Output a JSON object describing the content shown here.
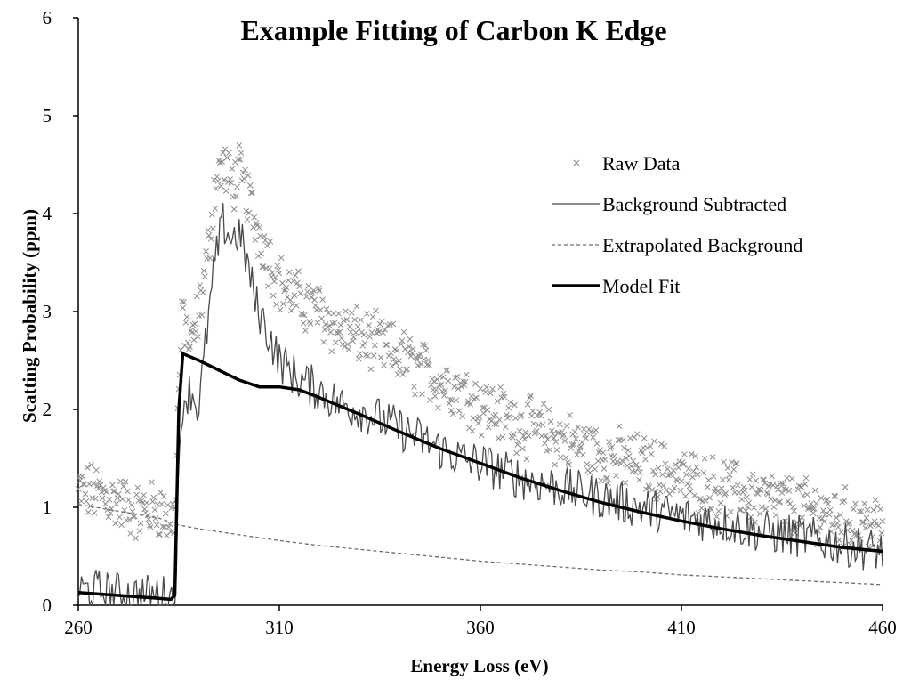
{
  "chart_data": {
    "type": "scatter",
    "title": "Example Fitting of Carbon K Edge",
    "xlabel": "Energy Loss (eV)",
    "ylabel": "Scatting Probability  (ppm)",
    "xlim": [
      260,
      460
    ],
    "ylim": [
      0,
      6
    ],
    "xticks": [
      260,
      310,
      360,
      410,
      460
    ],
    "yticks": [
      0,
      1,
      2,
      3,
      4,
      5,
      6
    ],
    "grid": false,
    "legend_position": "top-right",
    "colors": {
      "raw": "#8c8c8c",
      "background_subtracted": "#4a4a4a",
      "extrapolated": "#6e6e6e",
      "model_fit": "#000000"
    },
    "series": [
      {
        "name": "Raw Data",
        "style": "markers-x",
        "x": [
          260,
          265,
          270,
          275,
          280,
          283,
          284,
          285,
          286,
          288,
          290,
          292,
          294,
          296,
          298,
          300,
          302,
          304,
          306,
          308,
          310,
          315,
          320,
          325,
          330,
          335,
          340,
          345,
          350,
          355,
          360,
          370,
          380,
          390,
          400,
          410,
          420,
          430,
          440,
          450,
          460
        ],
        "values": [
          1.15,
          1.15,
          1.05,
          0.95,
          1.0,
          0.85,
          0.95,
          2.2,
          3.0,
          2.6,
          3.0,
          3.5,
          4.3,
          4.5,
          4.3,
          4.4,
          4.2,
          3.9,
          3.7,
          3.5,
          3.3,
          3.1,
          3.0,
          2.8,
          2.75,
          2.65,
          2.55,
          2.4,
          2.3,
          2.2,
          2.05,
          1.85,
          1.7,
          1.55,
          1.45,
          1.3,
          1.2,
          1.1,
          1.0,
          0.9,
          0.8
        ]
      },
      {
        "name": "Background Subtracted",
        "style": "line",
        "x": [
          260,
          265,
          270,
          275,
          280,
          283,
          284,
          285,
          286,
          288,
          290,
          292,
          294,
          296,
          298,
          300,
          302,
          304,
          306,
          308,
          310,
          315,
          320,
          325,
          330,
          335,
          340,
          345,
          350,
          355,
          360,
          370,
          380,
          390,
          400,
          410,
          420,
          430,
          440,
          450,
          460
        ],
        "values": [
          0.15,
          0.15,
          0.12,
          0.1,
          0.1,
          0.08,
          0.1,
          1.3,
          2.1,
          2.2,
          2.0,
          2.8,
          3.5,
          3.9,
          3.75,
          3.8,
          3.5,
          3.1,
          2.9,
          2.7,
          2.5,
          2.3,
          2.2,
          2.05,
          2.0,
          1.9,
          1.8,
          1.7,
          1.6,
          1.5,
          1.45,
          1.3,
          1.2,
          1.1,
          1.0,
          0.9,
          0.85,
          0.75,
          0.7,
          0.62,
          0.55
        ]
      },
      {
        "name": "Extrapolated Background",
        "style": "dashed",
        "x": [
          260,
          270,
          280,
          285,
          290,
          300,
          310,
          320,
          330,
          340,
          350,
          360,
          370,
          380,
          390,
          400,
          410,
          420,
          430,
          440,
          450,
          460
        ],
        "values": [
          1.03,
          0.96,
          0.89,
          0.82,
          0.78,
          0.72,
          0.66,
          0.61,
          0.57,
          0.53,
          0.49,
          0.45,
          0.42,
          0.39,
          0.36,
          0.34,
          0.31,
          0.29,
          0.27,
          0.25,
          0.23,
          0.21
        ]
      },
      {
        "name": "Model Fit",
        "style": "thick-line",
        "x": [
          260,
          270,
          280,
          283,
          284,
          285,
          286,
          290,
          295,
          300,
          305,
          310,
          315,
          320,
          330,
          340,
          350,
          360,
          370,
          380,
          390,
          400,
          410,
          420,
          430,
          440,
          450,
          460
        ],
        "values": [
          0.13,
          0.1,
          0.07,
          0.06,
          0.1,
          2.0,
          2.57,
          2.5,
          2.4,
          2.3,
          2.23,
          2.23,
          2.2,
          2.12,
          1.95,
          1.77,
          1.6,
          1.45,
          1.3,
          1.17,
          1.05,
          0.95,
          0.86,
          0.78,
          0.71,
          0.65,
          0.59,
          0.55
        ]
      }
    ]
  }
}
